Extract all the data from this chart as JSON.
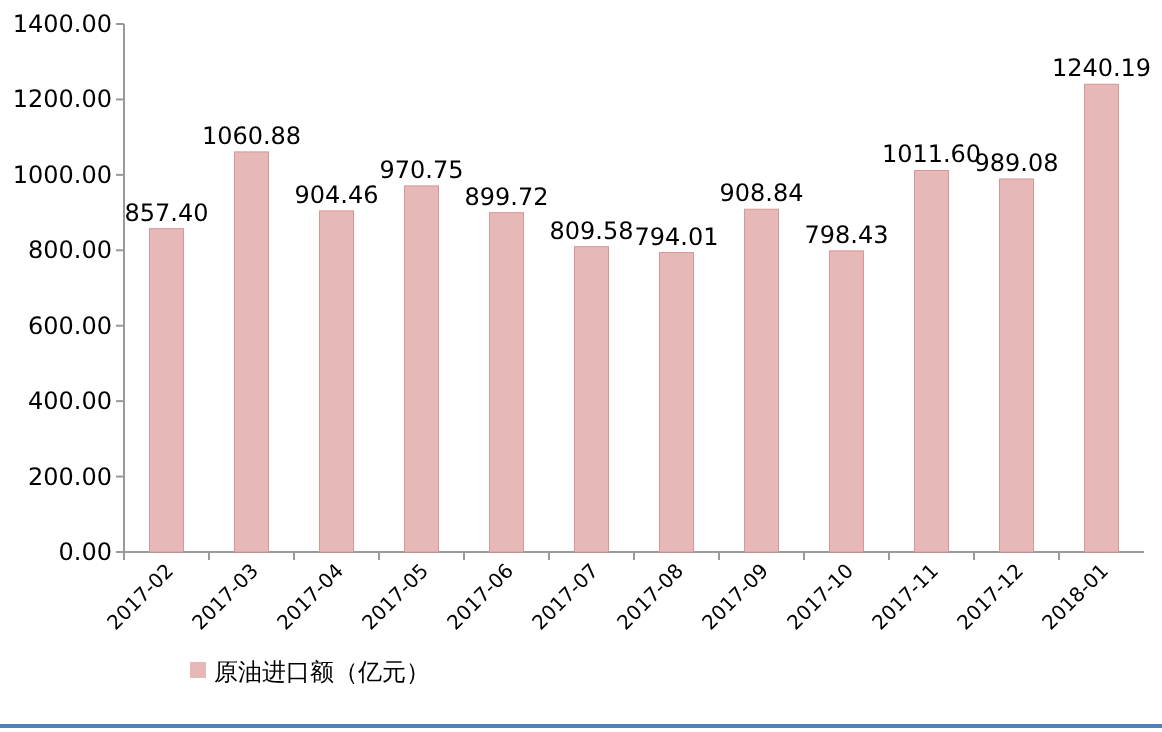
{
  "chart_data": {
    "type": "bar",
    "categories": [
      "2017-02",
      "2017-03",
      "2017-04",
      "2017-05",
      "2017-06",
      "2017-07",
      "2017-08",
      "2017-09",
      "2017-10",
      "2017-11",
      "2017-12",
      "2018-01"
    ],
    "series": [
      {
        "name": "原油进口额（亿元）",
        "color": "#e6b9b8",
        "values": [
          857.4,
          1060.88,
          904.46,
          970.75,
          899.72,
          809.58,
          794.01,
          908.84,
          798.43,
          1011.6,
          989.08,
          1240.19
        ],
        "value_labels": [
          "857.40",
          "1060.88",
          "904.46",
          "970.75",
          "899.72",
          "809.58",
          "794.01",
          "908.84",
          "798.43",
          "1011.60",
          "989.08",
          "1240.19"
        ]
      }
    ],
    "ylim": [
      0,
      1400
    ],
    "yticks": [
      {
        "value": 0,
        "label": "0.00"
      },
      {
        "value": 200,
        "label": "200.00"
      },
      {
        "value": 400,
        "label": "400.00"
      },
      {
        "value": 600,
        "label": "600.00"
      },
      {
        "value": 800,
        "label": "800.00"
      },
      {
        "value": 1000,
        "label": "1000.00"
      },
      {
        "value": 1200,
        "label": "1200.00"
      },
      {
        "value": 1400,
        "label": "1400.00"
      }
    ],
    "legend": "bottom left"
  }
}
